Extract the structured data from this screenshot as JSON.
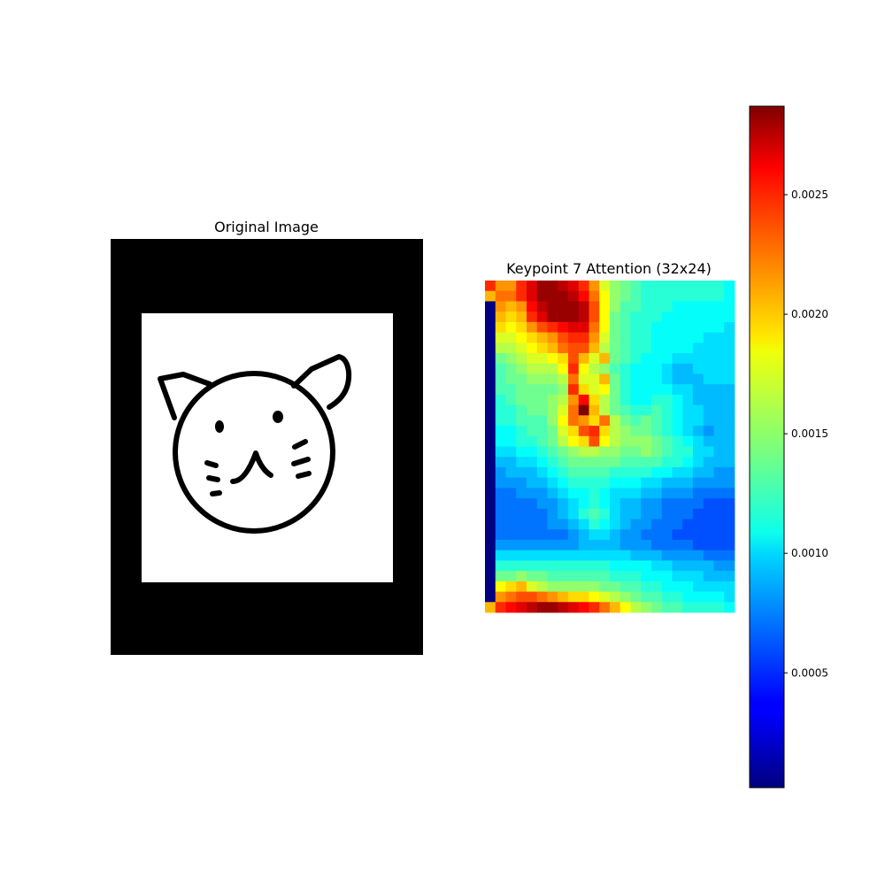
{
  "panels": {
    "left_title": "Original Image",
    "right_title": "Keypoint 7 Attention (32x24)"
  },
  "chart_data": [
    {
      "type": "image",
      "title": "Original Image",
      "content": "black-and-white line drawing of a cat face on a white rectangle with black padding",
      "colors": {
        "padding": "#000000",
        "canvas": "#ffffff",
        "ink": "#000000"
      }
    },
    {
      "type": "heatmap",
      "title": "Keypoint 7 Attention (32x24)",
      "rows": 32,
      "cols": 24,
      "colormap": "jet",
      "vmin": 2e-05,
      "vmax": 0.00287,
      "grid": false,
      "colorbar": {
        "ticks": [
          0.0005,
          0.001,
          0.0015,
          0.002,
          0.0025
        ],
        "tick_labels": [
          "0.0005",
          "0.0010",
          "0.0015",
          "0.0020",
          "0.0025"
        ]
      },
      "values_scale": 0.0001,
      "values": [
        [
          24,
          21,
          21,
          24,
          26,
          28,
          28,
          27,
          26,
          24,
          21,
          17,
          15,
          14,
          13,
          12,
          12,
          12,
          12,
          12,
          12,
          12,
          12,
          11
        ],
        [
          20,
          22,
          22,
          24,
          26,
          28,
          28,
          28,
          27,
          25,
          22,
          18,
          15,
          14,
          13,
          12,
          12,
          12,
          12,
          12,
          12,
          12,
          12,
          11
        ],
        [
          0,
          21,
          20,
          21,
          25,
          27,
          28,
          28,
          28,
          27,
          23,
          18,
          15,
          13,
          13,
          12,
          12,
          12,
          11,
          11,
          11,
          11,
          11,
          11
        ],
        [
          0,
          20,
          19,
          20,
          24,
          26,
          28,
          28,
          28,
          27,
          23,
          18,
          14,
          13,
          12,
          12,
          12,
          11,
          11,
          11,
          11,
          11,
          11,
          11
        ],
        [
          0,
          19,
          18,
          19,
          21,
          23,
          24,
          25,
          26,
          26,
          22,
          18,
          14,
          13,
          12,
          12,
          11,
          11,
          11,
          11,
          11,
          11,
          11,
          10
        ],
        [
          0,
          17,
          17,
          18,
          19,
          20,
          21,
          23,
          24,
          24,
          21,
          17,
          14,
          13,
          12,
          12,
          11,
          11,
          11,
          11,
          11,
          10,
          10,
          10
        ],
        [
          0,
          16,
          16,
          17,
          18,
          19,
          20,
          22,
          23,
          23,
          20,
          16,
          14,
          13,
          12,
          12,
          11,
          11,
          11,
          11,
          10,
          10,
          10,
          10
        ],
        [
          0,
          14,
          15,
          16,
          17,
          17,
          18,
          19,
          23,
          20,
          17,
          20,
          14,
          13,
          12,
          11,
          11,
          11,
          10,
          10,
          10,
          10,
          10,
          10
        ],
        [
          0,
          13,
          14,
          15,
          16,
          16,
          16,
          18,
          24,
          18,
          16,
          15,
          13,
          12,
          11,
          11,
          11,
          10,
          9,
          9,
          10,
          10,
          10,
          10
        ],
        [
          0,
          13,
          14,
          14,
          15,
          15,
          15,
          16,
          22,
          17,
          17,
          20,
          14,
          12,
          11,
          11,
          11,
          10,
          9,
          9,
          9,
          10,
          10,
          10
        ],
        [
          0,
          13,
          13,
          14,
          14,
          14,
          14,
          15,
          24,
          19,
          17,
          18,
          14,
          12,
          11,
          11,
          11,
          11,
          10,
          10,
          9,
          9,
          9,
          9
        ],
        [
          0,
          12,
          13,
          14,
          14,
          14,
          15,
          16,
          21,
          25,
          19,
          16,
          14,
          12,
          11,
          11,
          12,
          12,
          11,
          10,
          9,
          9,
          9,
          9
        ],
        [
          0,
          12,
          12,
          13,
          14,
          14,
          15,
          17,
          22,
          29,
          20,
          16,
          14,
          13,
          12,
          12,
          13,
          12,
          11,
          10,
          10,
          9,
          9,
          9
        ],
        [
          0,
          12,
          12,
          13,
          13,
          13,
          15,
          18,
          22,
          21,
          19,
          22,
          16,
          14,
          13,
          14,
          13,
          12,
          11,
          10,
          10,
          9,
          9,
          9
        ],
        [
          0,
          11,
          11,
          12,
          13,
          13,
          14,
          17,
          19,
          23,
          24,
          19,
          16,
          15,
          14,
          14,
          13,
          12,
          11,
          10,
          9,
          8,
          9,
          9
        ],
        [
          0,
          11,
          11,
          12,
          12,
          13,
          14,
          16,
          18,
          19,
          23,
          18,
          16,
          15,
          15,
          15,
          14,
          13,
          12,
          11,
          10,
          9,
          9,
          9
        ],
        [
          0,
          10,
          10,
          11,
          11,
          12,
          13,
          14,
          15,
          16,
          16,
          15,
          15,
          14,
          14,
          15,
          14,
          13,
          12,
          12,
          10,
          10,
          9,
          9
        ],
        [
          0,
          9,
          9,
          10,
          10,
          11,
          12,
          13,
          14,
          14,
          14,
          14,
          14,
          13,
          13,
          13,
          13,
          12,
          12,
          11,
          10,
          9,
          9,
          9
        ],
        [
          0,
          8,
          9,
          9,
          9,
          10,
          11,
          12,
          13,
          13,
          13,
          13,
          12,
          12,
          12,
          12,
          11,
          11,
          10,
          10,
          9,
          9,
          8,
          8
        ],
        [
          0,
          8,
          8,
          8,
          9,
          9,
          10,
          11,
          12,
          12,
          12,
          12,
          11,
          11,
          11,
          10,
          10,
          9,
          9,
          9,
          8,
          8,
          8,
          8
        ],
        [
          0,
          7,
          7,
          8,
          8,
          8,
          9,
          10,
          11,
          11,
          12,
          11,
          10,
          10,
          10,
          9,
          9,
          8,
          8,
          8,
          7,
          7,
          7,
          7
        ],
        [
          0,
          7,
          7,
          7,
          7,
          8,
          8,
          9,
          10,
          11,
          12,
          11,
          10,
          9,
          9,
          8,
          8,
          7,
          7,
          7,
          7,
          6,
          6,
          6
        ],
        [
          0,
          7,
          7,
          7,
          7,
          7,
          8,
          9,
          10,
          12,
          13,
          12,
          10,
          9,
          9,
          8,
          8,
          7,
          7,
          7,
          6,
          6,
          6,
          6
        ],
        [
          0,
          7,
          7,
          7,
          7,
          7,
          8,
          8,
          9,
          10,
          12,
          11,
          10,
          9,
          8,
          8,
          7,
          7,
          7,
          6,
          6,
          6,
          6,
          6
        ],
        [
          0,
          7,
          7,
          7,
          7,
          7,
          7,
          7,
          8,
          9,
          10,
          10,
          9,
          8,
          8,
          7,
          7,
          7,
          6,
          6,
          6,
          6,
          6,
          6
        ],
        [
          0,
          8,
          8,
          8,
          8,
          8,
          8,
          8,
          8,
          9,
          9,
          9,
          9,
          8,
          8,
          8,
          7,
          7,
          7,
          7,
          6,
          6,
          6,
          6
        ],
        [
          0,
          10,
          10,
          10,
          10,
          10,
          10,
          10,
          10,
          10,
          10,
          10,
          10,
          10,
          9,
          9,
          9,
          8,
          8,
          8,
          8,
          7,
          7,
          7
        ],
        [
          0,
          12,
          12,
          12,
          12,
          12,
          12,
          12,
          12,
          12,
          12,
          12,
          11,
          11,
          11,
          11,
          10,
          10,
          9,
          9,
          9,
          9,
          8,
          8
        ],
        [
          0,
          14,
          14,
          15,
          14,
          14,
          13,
          13,
          13,
          13,
          13,
          13,
          12,
          12,
          12,
          11,
          11,
          11,
          10,
          10,
          10,
          9,
          9,
          9
        ],
        [
          0,
          18,
          19,
          20,
          17,
          16,
          15,
          15,
          15,
          15,
          15,
          14,
          14,
          13,
          13,
          12,
          12,
          11,
          11,
          11,
          10,
          10,
          10,
          10
        ],
        [
          0,
          21,
          22,
          23,
          23,
          22,
          21,
          20,
          19,
          19,
          18,
          17,
          16,
          15,
          14,
          13,
          13,
          12,
          12,
          11,
          11,
          11,
          11,
          10
        ],
        [
          20,
          24,
          25,
          26,
          27,
          28,
          28,
          27,
          26,
          25,
          24,
          22,
          20,
          18,
          16,
          15,
          14,
          13,
          13,
          12,
          12,
          12,
          12,
          11
        ]
      ]
    }
  ]
}
